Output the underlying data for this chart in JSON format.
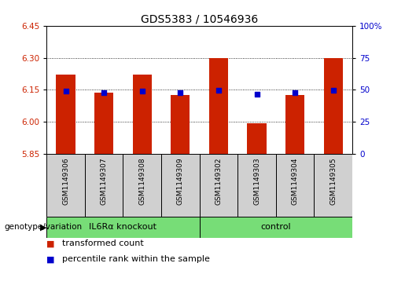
{
  "title": "GDS5383 / 10546936",
  "ylim_left": [
    5.85,
    6.45
  ],
  "ylim_right": [
    0,
    100
  ],
  "yticks_left": [
    5.85,
    6.0,
    6.15,
    6.3,
    6.45
  ],
  "yticks_right": [
    0,
    25,
    50,
    75,
    100
  ],
  "ytick_labels_right": [
    "0",
    "25",
    "50",
    "75",
    "100%"
  ],
  "samples": [
    "GSM1149306",
    "GSM1149307",
    "GSM1149308",
    "GSM1149309",
    "GSM1149302",
    "GSM1149303",
    "GSM1149304",
    "GSM1149305"
  ],
  "bar_values": [
    6.22,
    6.135,
    6.22,
    6.125,
    6.3,
    5.995,
    6.125,
    6.3
  ],
  "dot_values_left": [
    6.145,
    6.135,
    6.145,
    6.135,
    6.148,
    6.128,
    6.138,
    6.148
  ],
  "bar_bottom": 5.85,
  "bar_color": "#cc2200",
  "dot_color": "#0000cc",
  "groups": [
    {
      "label": "IL6Rα knockout",
      "indices": [
        0,
        1,
        2,
        3
      ],
      "color": "#77dd77"
    },
    {
      "label": "control",
      "indices": [
        4,
        5,
        6,
        7
      ],
      "color": "#77dd77"
    }
  ],
  "group_label_prefix": "genotype/variation",
  "legend_items": [
    {
      "label": "transformed count",
      "color": "#cc2200"
    },
    {
      "label": "percentile rank within the sample",
      "color": "#0000cc"
    }
  ],
  "grid_color": "#000000",
  "bar_width": 0.5,
  "dot_size": 20,
  "fontsize_title": 10,
  "fontsize_ticks": 7.5,
  "fontsize_sample": 6.5,
  "fontsize_group": 8,
  "fontsize_legend": 8,
  "fontsize_genlabel": 7.5
}
